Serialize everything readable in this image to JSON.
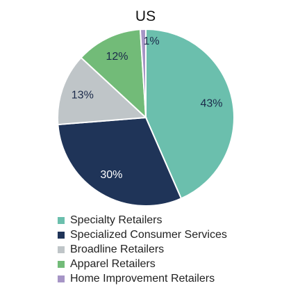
{
  "chart_data": {
    "type": "pie",
    "title": "US",
    "legend_position": "bottom",
    "slices": [
      {
        "label": "Specialty Retailers",
        "value": 43,
        "value_label": "43%",
        "color": "#6bbfad",
        "label_color": "#1b2a4a"
      },
      {
        "label": "Specialized Consumer Services",
        "value": 30,
        "value_label": "30%",
        "color": "#1f3458",
        "label_color": "#ffffff"
      },
      {
        "label": "Broadline Retailers",
        "value": 13,
        "value_label": "13%",
        "color": "#bfc5c8",
        "label_color": "#1b2a4a"
      },
      {
        "label": "Apparel Retailers",
        "value": 12,
        "value_label": "12%",
        "color": "#72bb78",
        "label_color": "#1b2a4a"
      },
      {
        "label": "Home Improvement Retailers",
        "value": 1,
        "value_label": "1%",
        "color": "#a695c6",
        "label_color": "#1b2a4a"
      }
    ]
  }
}
